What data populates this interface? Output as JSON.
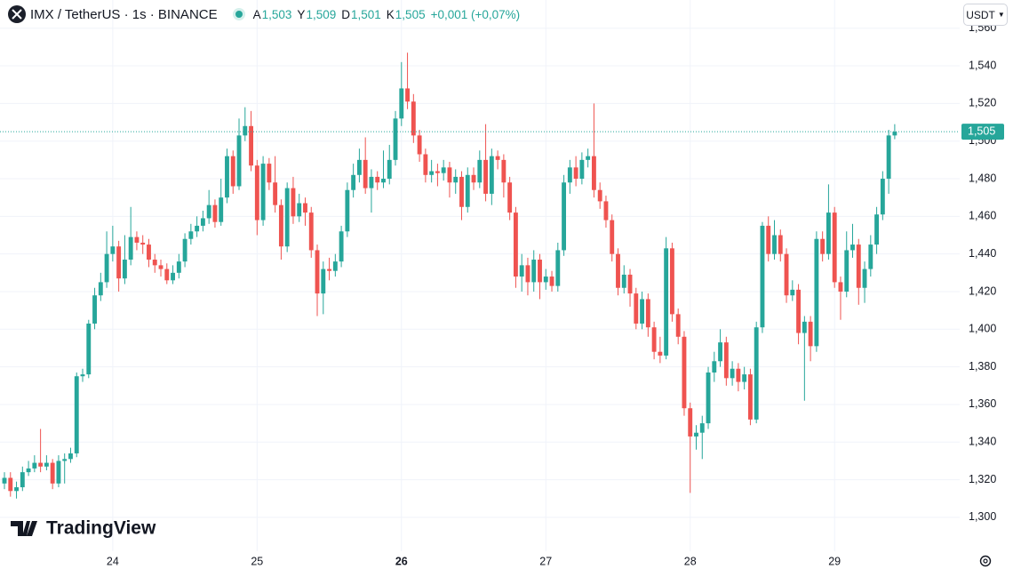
{
  "chart_data": {
    "type": "candlestick",
    "title": "IMX / TetherUS · 1s · BINANCE",
    "legend": [
      {
        "label": "A",
        "value": "1,503"
      },
      {
        "label": "Y",
        "value": "1,509"
      },
      {
        "label": "D",
        "value": "1,501"
      },
      {
        "label": "K",
        "value": "1,505"
      }
    ],
    "change": "+0,001 (+0,07%)",
    "currency": "USDT",
    "watermark": "TradingView",
    "up_color": "#26a69a",
    "down_color": "#ef5350",
    "grid": true,
    "last_price": {
      "value": 1.505,
      "label": "1,505"
    },
    "xlim": [
      -0.74,
      158.8
    ],
    "xticks": [
      {
        "value": 18,
        "label": "24"
      },
      {
        "value": 42,
        "label": "25"
      },
      {
        "value": 66,
        "label": "26",
        "bold": true
      },
      {
        "value": 90,
        "label": "27"
      },
      {
        "value": 114,
        "label": "28"
      },
      {
        "value": 138,
        "label": "29"
      }
    ],
    "ylim": [
      1.282,
      1.575
    ],
    "yticks": [
      {
        "value": 1.3,
        "label": "1,300"
      },
      {
        "value": 1.32,
        "label": "1,320"
      },
      {
        "value": 1.34,
        "label": "1,340"
      },
      {
        "value": 1.36,
        "label": "1,360"
      },
      {
        "value": 1.38,
        "label": "1,380"
      },
      {
        "value": 1.4,
        "label": "1,400"
      },
      {
        "value": 1.42,
        "label": "1,420"
      },
      {
        "value": 1.44,
        "label": "1,440"
      },
      {
        "value": 1.46,
        "label": "1,460"
      },
      {
        "value": 1.48,
        "label": "1,480"
      },
      {
        "value": 1.5,
        "label": "1,500"
      },
      {
        "value": 1.52,
        "label": "1,520"
      },
      {
        "value": 1.54,
        "label": "1,540"
      },
      {
        "value": 1.56,
        "label": "1,560"
      }
    ],
    "open": [
      1.318,
      1.321,
      1.314,
      1.316,
      1.324,
      1.326,
      1.329,
      1.327,
      1.329,
      1.318,
      1.33,
      1.331,
      1.334,
      1.375,
      1.376,
      1.403,
      1.418,
      1.425,
      1.44,
      1.444,
      1.427,
      1.437,
      1.449,
      1.446,
      1.445,
      1.437,
      1.434,
      1.432,
      1.426,
      1.43,
      1.436,
      1.448,
      1.452,
      1.455,
      1.459,
      1.466,
      1.457,
      1.47,
      1.492,
      1.476,
      1.503,
      1.508,
      1.487,
      1.458,
      1.488,
      1.478,
      1.466,
      1.444,
      1.475,
      1.46,
      1.467,
      1.462,
      1.442,
      1.419,
      1.432,
      1.431,
      1.436,
      1.452,
      1.474,
      1.482,
      1.49,
      1.475,
      1.481,
      1.478,
      1.48,
      1.49,
      1.512,
      1.528,
      1.521,
      1.503,
      1.493,
      1.482,
      1.484,
      1.483,
      1.486,
      1.478,
      1.481,
      1.465,
      1.482,
      1.478,
      1.49,
      1.472,
      1.492,
      1.49,
      1.478,
      1.462,
      1.428,
      1.434,
      1.425,
      1.437,
      1.425,
      1.428,
      1.423,
      1.442,
      1.478,
      1.486,
      1.48,
      1.49,
      1.492,
      1.474,
      1.468,
      1.458,
      1.44,
      1.422,
      1.429,
      1.419,
      1.403,
      1.416,
      1.401,
      1.388,
      1.386,
      1.443,
      1.408,
      1.396,
      1.358,
      1.343,
      1.345,
      1.35,
      1.377,
      1.383,
      1.393,
      1.374,
      1.379,
      1.372,
      1.376,
      1.352,
      1.401,
      1.455,
      1.44,
      1.45,
      1.44,
      1.418,
      1.421,
      1.398,
      1.404,
      1.391,
      1.448,
      1.44,
      1.462,
      1.425,
      1.42,
      1.442,
      1.445,
      1.422,
      1.432,
      1.445,
      1.461,
      1.48,
      1.503
    ],
    "high": [
      1.324,
      1.324,
      1.319,
      1.327,
      1.33,
      1.333,
      1.347,
      1.333,
      1.331,
      1.333,
      1.334,
      1.337,
      1.377,
      1.379,
      1.405,
      1.422,
      1.43,
      1.452,
      1.455,
      1.447,
      1.45,
      1.465,
      1.452,
      1.45,
      1.448,
      1.44,
      1.437,
      1.435,
      1.434,
      1.44,
      1.451,
      1.456,
      1.46,
      1.463,
      1.474,
      1.469,
      1.48,
      1.496,
      1.495,
      1.512,
      1.518,
      1.516,
      1.49,
      1.492,
      1.491,
      1.492,
      1.469,
      1.478,
      1.481,
      1.472,
      1.47,
      1.465,
      1.445,
      1.436,
      1.438,
      1.44,
      1.455,
      1.478,
      1.488,
      1.496,
      1.502,
      1.485,
      1.484,
      1.495,
      1.498,
      1.516,
      1.542,
      1.547,
      1.525,
      1.506,
      1.496,
      1.49,
      1.488,
      1.49,
      1.489,
      1.485,
      1.484,
      1.486,
      1.486,
      1.495,
      1.509,
      1.496,
      1.495,
      1.493,
      1.481,
      1.465,
      1.44,
      1.438,
      1.442,
      1.44,
      1.432,
      1.431,
      1.446,
      1.482,
      1.49,
      1.492,
      1.494,
      1.496,
      1.52,
      1.478,
      1.471,
      1.461,
      1.443,
      1.434,
      1.432,
      1.422,
      1.42,
      1.419,
      1.404,
      1.396,
      1.449,
      1.446,
      1.411,
      1.399,
      1.361,
      1.349,
      1.354,
      1.38,
      1.388,
      1.4,
      1.396,
      1.383,
      1.382,
      1.38,
      1.379,
      1.404,
      1.457,
      1.46,
      1.458,
      1.453,
      1.443,
      1.426,
      1.424,
      1.407,
      1.407,
      1.452,
      1.452,
      1.477,
      1.465,
      1.428,
      1.452,
      1.456,
      1.448,
      1.436,
      1.45,
      1.465,
      1.484,
      1.506,
      1.509
    ],
    "low": [
      1.315,
      1.311,
      1.31,
      1.314,
      1.322,
      1.324,
      1.324,
      1.325,
      1.315,
      1.316,
      1.318,
      1.329,
      1.332,
      1.372,
      1.374,
      1.4,
      1.415,
      1.422,
      1.436,
      1.42,
      1.424,
      1.434,
      1.442,
      1.44,
      1.433,
      1.43,
      1.428,
      1.424,
      1.424,
      1.427,
      1.433,
      1.445,
      1.449,
      1.452,
      1.456,
      1.454,
      1.455,
      1.467,
      1.472,
      1.474,
      1.5,
      1.484,
      1.45,
      1.455,
      1.474,
      1.462,
      1.437,
      1.441,
      1.456,
      1.457,
      1.455,
      1.438,
      1.407,
      1.408,
      1.426,
      1.428,
      1.433,
      1.449,
      1.47,
      1.478,
      1.472,
      1.462,
      1.474,
      1.475,
      1.477,
      1.487,
      1.508,
      1.517,
      1.499,
      1.489,
      1.478,
      1.478,
      1.476,
      1.479,
      1.47,
      1.472,
      1.458,
      1.462,
      1.474,
      1.475,
      1.468,
      1.466,
      1.485,
      1.47,
      1.458,
      1.422,
      1.42,
      1.418,
      1.42,
      1.416,
      1.421,
      1.42,
      1.42,
      1.439,
      1.472,
      1.476,
      1.477,
      1.486,
      1.47,
      1.464,
      1.454,
      1.436,
      1.418,
      1.419,
      1.412,
      1.4,
      1.4,
      1.396,
      1.384,
      1.382,
      1.384,
      1.404,
      1.392,
      1.354,
      1.313,
      1.336,
      1.331,
      1.347,
      1.372,
      1.38,
      1.37,
      1.37,
      1.367,
      1.368,
      1.349,
      1.35,
      1.398,
      1.436,
      1.437,
      1.436,
      1.414,
      1.415,
      1.392,
      1.362,
      1.383,
      1.388,
      1.436,
      1.437,
      1.422,
      1.405,
      1.417,
      1.438,
      1.413,
      1.414,
      1.428,
      1.44,
      1.458,
      1.472,
      1.501
    ],
    "close": [
      1.321,
      1.314,
      1.316,
      1.324,
      1.326,
      1.329,
      1.327,
      1.329,
      1.318,
      1.33,
      1.331,
      1.334,
      1.375,
      1.376,
      1.403,
      1.418,
      1.425,
      1.44,
      1.444,
      1.427,
      1.437,
      1.449,
      1.446,
      1.445,
      1.437,
      1.434,
      1.432,
      1.426,
      1.43,
      1.436,
      1.448,
      1.452,
      1.455,
      1.459,
      1.466,
      1.457,
      1.47,
      1.492,
      1.476,
      1.503,
      1.508,
      1.487,
      1.458,
      1.488,
      1.478,
      1.466,
      1.444,
      1.475,
      1.46,
      1.467,
      1.462,
      1.442,
      1.419,
      1.432,
      1.431,
      1.436,
      1.452,
      1.474,
      1.482,
      1.49,
      1.475,
      1.481,
      1.478,
      1.48,
      1.49,
      1.512,
      1.528,
      1.521,
      1.503,
      1.493,
      1.482,
      1.484,
      1.483,
      1.486,
      1.478,
      1.481,
      1.465,
      1.482,
      1.478,
      1.49,
      1.472,
      1.492,
      1.49,
      1.478,
      1.462,
      1.428,
      1.434,
      1.425,
      1.437,
      1.425,
      1.428,
      1.423,
      1.442,
      1.478,
      1.486,
      1.48,
      1.49,
      1.492,
      1.474,
      1.468,
      1.458,
      1.44,
      1.422,
      1.429,
      1.419,
      1.403,
      1.416,
      1.401,
      1.388,
      1.386,
      1.443,
      1.408,
      1.396,
      1.358,
      1.343,
      1.345,
      1.35,
      1.377,
      1.383,
      1.393,
      1.374,
      1.379,
      1.372,
      1.376,
      1.352,
      1.401,
      1.455,
      1.44,
      1.45,
      1.44,
      1.418,
      1.421,
      1.398,
      1.404,
      1.391,
      1.448,
      1.44,
      1.462,
      1.425,
      1.42,
      1.442,
      1.445,
      1.422,
      1.432,
      1.445,
      1.461,
      1.48,
      1.503,
      1.505
    ]
  }
}
